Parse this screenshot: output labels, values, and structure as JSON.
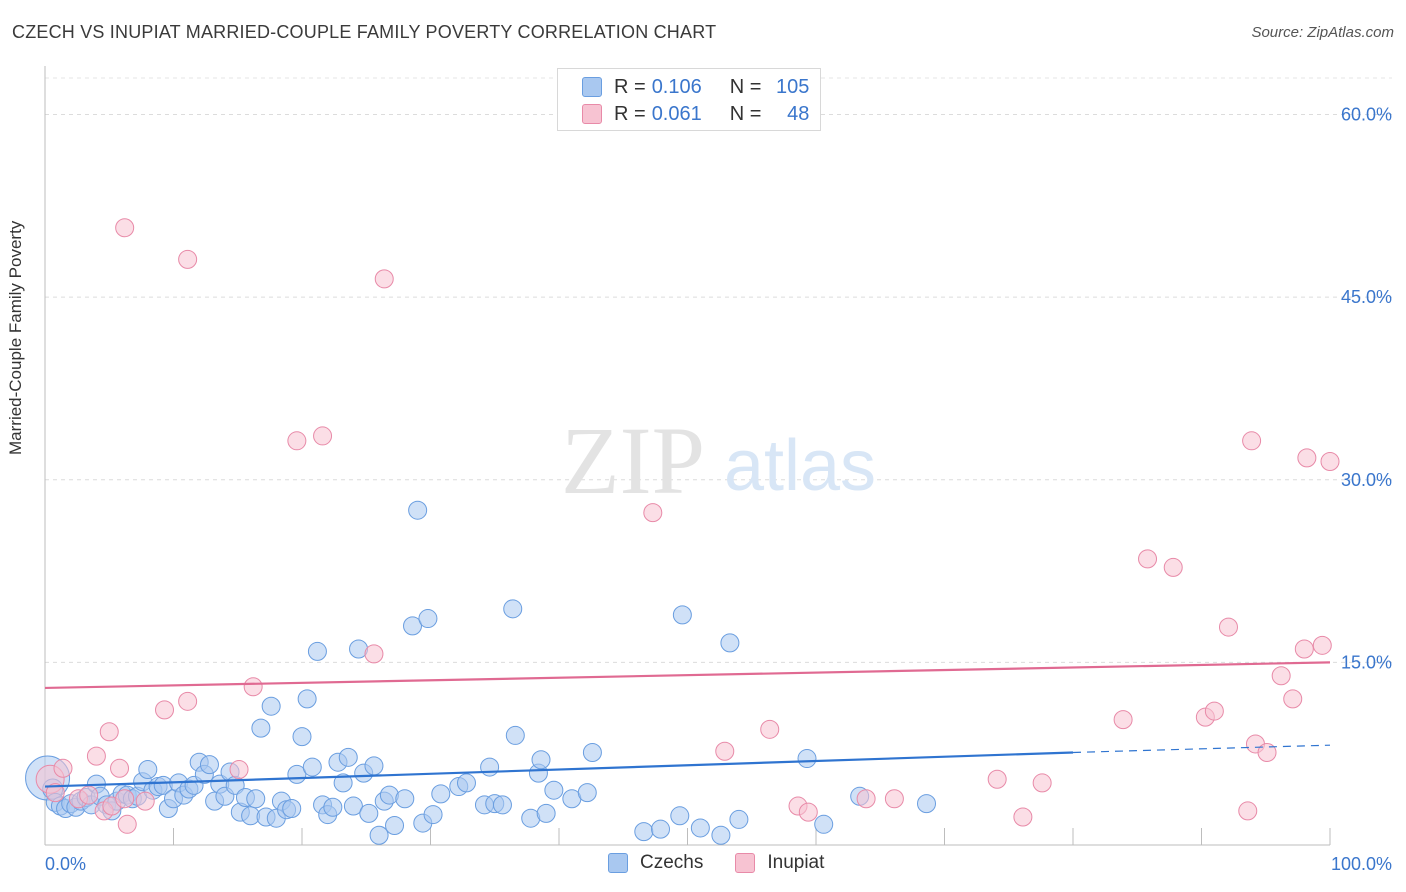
{
  "title": "CZECH VS INUPIAT MARRIED-COUPLE FAMILY POVERTY CORRELATION CHART",
  "source": "Source: ZipAtlas.com",
  "watermark": {
    "zip": "ZIP",
    "atlas": "atlas"
  },
  "legend_top": {
    "rows": [
      {
        "r_label": "R =",
        "r_value": "0.106",
        "n_label": "N =",
        "n_value": "105",
        "color": "#a9c8f0",
        "border": "#6a9ee0"
      },
      {
        "r_label": "R =",
        "r_value": "0.061",
        "n_label": "N =",
        "n_value": "48",
        "color": "#f7c3d2",
        "border": "#e88aa8"
      }
    ]
  },
  "legend_bottom": [
    {
      "label": "Czechs",
      "color": "#a9c8f0",
      "border": "#6a9ee0"
    },
    {
      "label": "Inupiat",
      "color": "#f7c3d2",
      "border": "#e88aa8"
    }
  ],
  "chart_data": {
    "type": "scatter",
    "title": "CZECH VS INUPIAT MARRIED-COUPLE FAMILY POVERTY CORRELATION CHART",
    "xlabel": "",
    "ylabel": "Married-Couple Family Poverty",
    "xlim": [
      0,
      100
    ],
    "ylim": [
      0,
      63
    ],
    "x_tick_labels": [
      {
        "value": 0,
        "label": "0.0%"
      },
      {
        "value": 100,
        "label": "100.0%"
      }
    ],
    "y_tick_labels": [
      {
        "value": 15,
        "label": "15.0%"
      },
      {
        "value": 30,
        "label": "30.0%"
      },
      {
        "value": 45,
        "label": "45.0%"
      },
      {
        "value": 60,
        "label": "60.0%"
      }
    ],
    "x_minor_ticks": [
      10,
      20,
      30,
      40,
      50,
      60,
      70,
      80,
      90
    ],
    "grid": true,
    "legend_position": "top-center",
    "series": [
      {
        "name": "Czechs",
        "color": "#6a9ee0",
        "fill": "#a9c8f0",
        "trend": {
          "x0": 0,
          "y0": 4.8,
          "x1": 80,
          "y1": 7.6,
          "dash_to_x": 100,
          "dash_to_y": 8.2,
          "color": "#2f74d0"
        },
        "points": [
          [
            0.2,
            5.5,
            22
          ],
          [
            0.6,
            4.6,
            10
          ],
          [
            0.8,
            3.5,
            9
          ],
          [
            1.2,
            3.2,
            9
          ],
          [
            1.6,
            3.0,
            9
          ],
          [
            2.0,
            3.4,
            9
          ],
          [
            2.4,
            3.1,
            9
          ],
          [
            2.8,
            3.6,
            9
          ],
          [
            3.2,
            3.9,
            9
          ],
          [
            3.6,
            3.3,
            9
          ],
          [
            4.0,
            5.0,
            9
          ],
          [
            4.3,
            4.0,
            9
          ],
          [
            4.8,
            3.3,
            9
          ],
          [
            5.2,
            2.8,
            9
          ],
          [
            5.6,
            3.6,
            9
          ],
          [
            6.0,
            4.2,
            9
          ],
          [
            6.4,
            4.1,
            9
          ],
          [
            6.8,
            3.8,
            9
          ],
          [
            7.2,
            4.0,
            9
          ],
          [
            7.6,
            5.2,
            9
          ],
          [
            8.0,
            6.2,
            9
          ],
          [
            8.4,
            4.5,
            9
          ],
          [
            8.8,
            4.8,
            9
          ],
          [
            9.2,
            4.9,
            9
          ],
          [
            9.6,
            3.0,
            9
          ],
          [
            10.0,
            3.8,
            9
          ],
          [
            10.4,
            5.1,
            9
          ],
          [
            10.8,
            4.1,
            9
          ],
          [
            11.2,
            4.6,
            9
          ],
          [
            11.6,
            4.9,
            9
          ],
          [
            12.0,
            6.8,
            9
          ],
          [
            12.4,
            5.8,
            9
          ],
          [
            12.8,
            6.6,
            9
          ],
          [
            13.2,
            3.6,
            9
          ],
          [
            13.6,
            5.0,
            9
          ],
          [
            14.0,
            4.0,
            9
          ],
          [
            14.4,
            6.0,
            9
          ],
          [
            14.8,
            4.9,
            9
          ],
          [
            15.2,
            2.7,
            9
          ],
          [
            15.6,
            3.9,
            9
          ],
          [
            16.0,
            2.4,
            9
          ],
          [
            16.4,
            3.8,
            9
          ],
          [
            16.8,
            9.6,
            9
          ],
          [
            17.2,
            2.3,
            9
          ],
          [
            17.6,
            11.4,
            9
          ],
          [
            18.0,
            2.2,
            9
          ],
          [
            18.4,
            3.6,
            9
          ],
          [
            18.8,
            2.9,
            9
          ],
          [
            19.2,
            3.0,
            9
          ],
          [
            19.6,
            5.8,
            9
          ],
          [
            20.0,
            8.9,
            9
          ],
          [
            20.4,
            12.0,
            9
          ],
          [
            20.8,
            6.4,
            9
          ],
          [
            21.2,
            15.9,
            9
          ],
          [
            21.6,
            3.3,
            9
          ],
          [
            22.0,
            2.5,
            9
          ],
          [
            22.4,
            3.1,
            9
          ],
          [
            22.8,
            6.8,
            9
          ],
          [
            23.2,
            5.1,
            9
          ],
          [
            23.6,
            7.2,
            9
          ],
          [
            24.0,
            3.2,
            9
          ],
          [
            24.4,
            16.1,
            9
          ],
          [
            24.8,
            5.9,
            9
          ],
          [
            25.2,
            2.6,
            9
          ],
          [
            25.6,
            6.5,
            9
          ],
          [
            26.0,
            0.8,
            9
          ],
          [
            26.4,
            3.6,
            9
          ],
          [
            26.8,
            4.1,
            9
          ],
          [
            27.2,
            1.6,
            9
          ],
          [
            28.0,
            3.8,
            9
          ],
          [
            28.6,
            18.0,
            9
          ],
          [
            29.0,
            27.5,
            9
          ],
          [
            29.4,
            1.8,
            9
          ],
          [
            29.8,
            18.6,
            9
          ],
          [
            30.2,
            2.5,
            9
          ],
          [
            30.8,
            4.2,
            9
          ],
          [
            32.2,
            4.8,
            9
          ],
          [
            32.8,
            5.1,
            9
          ],
          [
            34.2,
            3.3,
            9
          ],
          [
            34.6,
            6.4,
            9
          ],
          [
            35.0,
            3.4,
            9
          ],
          [
            35.6,
            3.3,
            9
          ],
          [
            36.4,
            19.4,
            9
          ],
          [
            36.6,
            9.0,
            9
          ],
          [
            37.8,
            2.2,
            9
          ],
          [
            38.4,
            5.9,
            9
          ],
          [
            38.6,
            7.0,
            9
          ],
          [
            39.0,
            2.6,
            9
          ],
          [
            39.6,
            4.5,
            9
          ],
          [
            41.0,
            3.8,
            9
          ],
          [
            42.2,
            4.3,
            9
          ],
          [
            42.6,
            7.6,
            9
          ],
          [
            46.6,
            1.1,
            9
          ],
          [
            47.9,
            1.3,
            9
          ],
          [
            49.4,
            2.4,
            9
          ],
          [
            49.6,
            18.9,
            9
          ],
          [
            51.0,
            1.4,
            9
          ],
          [
            52.6,
            0.8,
            9
          ],
          [
            53.3,
            16.6,
            9
          ],
          [
            54.0,
            2.1,
            9
          ],
          [
            59.3,
            7.1,
            9
          ],
          [
            60.6,
            1.7,
            9
          ],
          [
            63.4,
            4.0,
            9
          ],
          [
            68.6,
            3.4,
            9
          ]
        ]
      },
      {
        "name": "Inupiat",
        "color": "#e88aa8",
        "fill": "#f7c3d2",
        "trend": {
          "x0": 0,
          "y0": 12.9,
          "x1": 100,
          "y1": 15.0,
          "color": "#e06a92"
        },
        "points": [
          [
            0.4,
            5.4,
            14
          ],
          [
            0.8,
            4.3,
            9
          ],
          [
            1.4,
            6.3,
            9
          ],
          [
            2.6,
            3.8,
            9
          ],
          [
            3.4,
            4.1,
            9
          ],
          [
            4.0,
            7.3,
            9
          ],
          [
            4.6,
            2.8,
            9
          ],
          [
            5.0,
            9.3,
            9
          ],
          [
            5.2,
            3.2,
            9
          ],
          [
            5.8,
            6.3,
            9
          ],
          [
            6.2,
            3.8,
            9
          ],
          [
            6.4,
            1.7,
            9
          ],
          [
            6.2,
            50.7,
            9
          ],
          [
            7.8,
            3.6,
            9
          ],
          [
            9.3,
            11.1,
            9
          ],
          [
            11.1,
            11.8,
            9
          ],
          [
            11.1,
            48.1,
            9
          ],
          [
            15.1,
            6.2,
            9
          ],
          [
            16.2,
            13.0,
            9
          ],
          [
            19.6,
            33.2,
            9
          ],
          [
            21.6,
            33.6,
            9
          ],
          [
            25.6,
            15.7,
            9
          ],
          [
            26.4,
            46.5,
            9
          ],
          [
            47.3,
            27.3,
            9
          ],
          [
            52.9,
            7.7,
            9
          ],
          [
            56.4,
            9.5,
            9
          ],
          [
            58.6,
            3.2,
            9
          ],
          [
            59.4,
            2.7,
            9
          ],
          [
            63.9,
            3.8,
            9
          ],
          [
            66.1,
            3.8,
            9
          ],
          [
            74.1,
            5.4,
            9
          ],
          [
            76.1,
            2.3,
            9
          ],
          [
            77.6,
            5.1,
            9
          ],
          [
            83.9,
            10.3,
            9
          ],
          [
            85.8,
            23.5,
            9
          ],
          [
            87.8,
            22.8,
            9
          ],
          [
            90.3,
            10.5,
            9
          ],
          [
            91.0,
            11.0,
            9
          ],
          [
            92.1,
            17.9,
            9
          ],
          [
            93.6,
            2.8,
            9
          ],
          [
            93.9,
            33.2,
            9
          ],
          [
            94.2,
            8.3,
            9
          ],
          [
            95.1,
            7.6,
            9
          ],
          [
            96.2,
            13.9,
            9
          ],
          [
            97.1,
            12.0,
            9
          ],
          [
            98.0,
            16.1,
            9
          ],
          [
            98.2,
            31.8,
            9
          ],
          [
            99.4,
            16.4,
            9
          ],
          [
            100.0,
            31.5,
            9
          ]
        ]
      }
    ]
  }
}
